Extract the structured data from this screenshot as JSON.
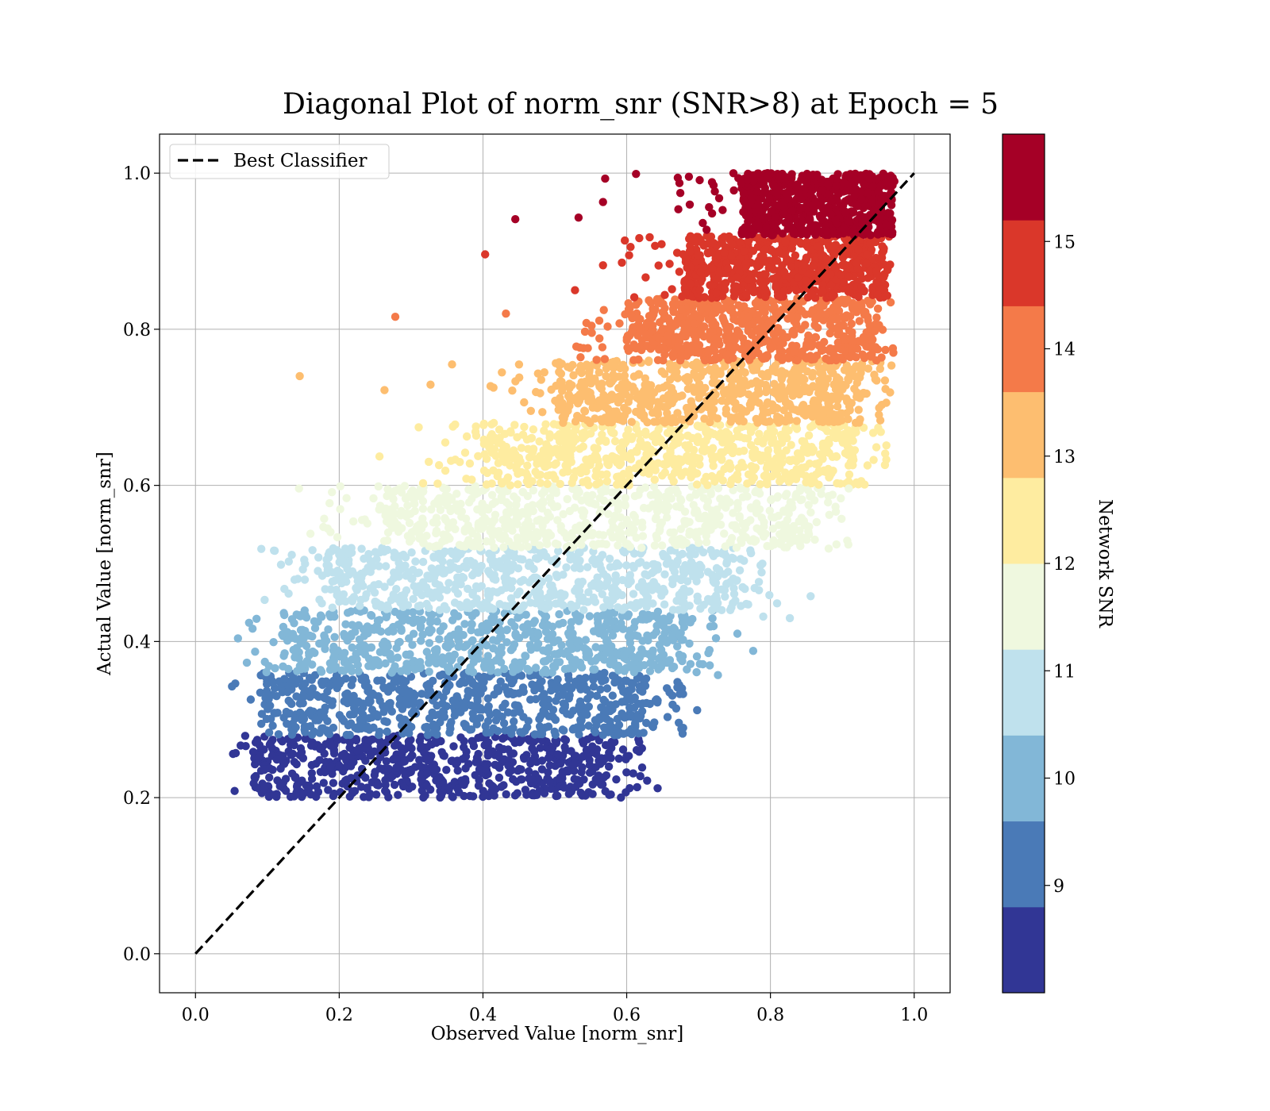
{
  "chart_data": {
    "type": "scatter",
    "title": "Diagonal Plot of norm_snr (SNR>8) at Epoch = 5",
    "xlabel": "Observed Value [norm_snr]",
    "ylabel": "Actual Value [norm_snr]",
    "xlim": [
      -0.05,
      1.05
    ],
    "ylim": [
      -0.05,
      1.05
    ],
    "xticks": [
      "0.0",
      "0.2",
      "0.4",
      "0.6",
      "0.8",
      "1.0"
    ],
    "yticks": [
      "0.0",
      "0.2",
      "0.4",
      "0.6",
      "0.8",
      "1.0"
    ],
    "grid": true,
    "legend": {
      "position": "top-left",
      "entries": [
        "Best Classifier"
      ]
    },
    "reference_line": {
      "label": "Best Classifier",
      "style": "dashed",
      "color": "#000000",
      "x": [
        0.0,
        1.0
      ],
      "y": [
        0.0,
        1.0
      ]
    },
    "colorbar": {
      "label": "Network SNR",
      "ticks": [
        "9",
        "10",
        "11",
        "12",
        "13",
        "14",
        "15"
      ],
      "tick_values": [
        9,
        10,
        11,
        12,
        13,
        14,
        15
      ],
      "range": [
        8.0,
        16.0
      ],
      "colormap": "RdYlBu_r (discrete)"
    },
    "bands": [
      {
        "snr_range": [
          8.0,
          8.8
        ],
        "color": "#313695",
        "y_range": [
          0.2,
          0.28
        ],
        "x_range": [
          0.08,
          0.58
        ]
      },
      {
        "snr_range": [
          8.8,
          9.6
        ],
        "color": "#4a7ab7",
        "y_range": [
          0.28,
          0.36
        ],
        "x_range": [
          0.09,
          0.63
        ]
      },
      {
        "snr_range": [
          9.6,
          10.4
        ],
        "color": "#82b7d7",
        "y_range": [
          0.36,
          0.44
        ],
        "x_range": [
          0.12,
          0.68
        ]
      },
      {
        "snr_range": [
          10.4,
          11.2
        ],
        "color": "#bfe1ed",
        "y_range": [
          0.44,
          0.52
        ],
        "x_range": [
          0.18,
          0.76
        ]
      },
      {
        "snr_range": [
          11.2,
          12.0
        ],
        "color": "#eff8df",
        "y_range": [
          0.52,
          0.6
        ],
        "x_range": [
          0.26,
          0.86
        ]
      },
      {
        "snr_range": [
          12.0,
          12.8
        ],
        "color": "#feeca0",
        "y_range": [
          0.6,
          0.68
        ],
        "x_range": [
          0.4,
          0.92
        ]
      },
      {
        "snr_range": [
          12.8,
          13.6
        ],
        "color": "#fdbe70",
        "y_range": [
          0.68,
          0.76
        ],
        "x_range": [
          0.5,
          0.93
        ]
      },
      {
        "snr_range": [
          13.6,
          14.4
        ],
        "color": "#f47a49",
        "y_range": [
          0.76,
          0.84
        ],
        "x_range": [
          0.6,
          0.95
        ]
      },
      {
        "snr_range": [
          14.4,
          15.2
        ],
        "color": "#da372a",
        "y_range": [
          0.84,
          0.92
        ],
        "x_range": [
          0.68,
          0.96
        ]
      },
      {
        "snr_range": [
          15.2,
          16.0
        ],
        "color": "#a50026",
        "y_range": [
          0.92,
          1.0
        ],
        "x_range": [
          0.76,
          0.97
        ]
      }
    ],
    "outliers": [
      {
        "x": 0.145,
        "y": 0.74,
        "color": "#fdbe70"
      },
      {
        "x": 0.278,
        "y": 0.816,
        "color": "#f47a49"
      },
      {
        "x": 0.403,
        "y": 0.896,
        "color": "#da372a"
      },
      {
        "x": 0.445,
        "y": 0.941,
        "color": "#a50026"
      },
      {
        "x": 0.57,
        "y": 0.993,
        "color": "#a50026"
      },
      {
        "x": 0.613,
        "y": 0.999,
        "color": "#a50026"
      },
      {
        "x": 0.533,
        "y": 0.943,
        "color": "#a50026"
      },
      {
        "x": 0.263,
        "y": 0.722,
        "color": "#fdbe70"
      },
      {
        "x": 0.357,
        "y": 0.755,
        "color": "#fdbe70"
      },
      {
        "x": 0.134,
        "y": 0.511,
        "color": "#bfe1ed"
      },
      {
        "x": 0.144,
        "y": 0.596,
        "color": "#eff8df"
      },
      {
        "x": 0.643,
        "y": 0.212,
        "color": "#313695"
      },
      {
        "x": 0.609,
        "y": 0.231,
        "color": "#313695"
      },
      {
        "x": 0.056,
        "y": 0.257,
        "color": "#313695"
      },
      {
        "x": 0.085,
        "y": 0.429,
        "color": "#82b7d7"
      },
      {
        "x": 0.676,
        "y": 0.288,
        "color": "#4a7ab7"
      },
      {
        "x": 0.727,
        "y": 0.357,
        "color": "#82b7d7"
      },
      {
        "x": 0.776,
        "y": 0.388,
        "color": "#82b7d7"
      },
      {
        "x": 0.827,
        "y": 0.43,
        "color": "#bfe1ed"
      },
      {
        "x": 0.856,
        "y": 0.458,
        "color": "#bfe1ed"
      },
      {
        "x": 0.881,
        "y": 0.519,
        "color": "#eff8df"
      },
      {
        "x": 0.909,
        "y": 0.596,
        "color": "#eff8df"
      },
      {
        "x": 0.971,
        "y": 0.77,
        "color": "#f47a49"
      },
      {
        "x": 0.542,
        "y": 0.797,
        "color": "#f47a49"
      },
      {
        "x": 0.432,
        "y": 0.82,
        "color": "#f47a49"
      },
      {
        "x": 0.567,
        "y": 0.882,
        "color": "#da372a"
      },
      {
        "x": 0.528,
        "y": 0.85,
        "color": "#da372a"
      },
      {
        "x": 0.567,
        "y": 0.963,
        "color": "#a50026"
      },
      {
        "x": 0.327,
        "y": 0.729,
        "color": "#fdbe70"
      },
      {
        "x": 0.256,
        "y": 0.637,
        "color": "#feeca0"
      },
      {
        "x": 0.16,
        "y": 0.538,
        "color": "#eff8df"
      },
      {
        "x": 0.578,
        "y": 0.204,
        "color": "#313695"
      },
      {
        "x": 0.698,
        "y": 0.312,
        "color": "#4a7ab7"
      },
      {
        "x": 0.754,
        "y": 0.41,
        "color": "#82b7d7"
      },
      {
        "x": 0.79,
        "y": 0.432,
        "color": "#bfe1ed"
      }
    ]
  }
}
